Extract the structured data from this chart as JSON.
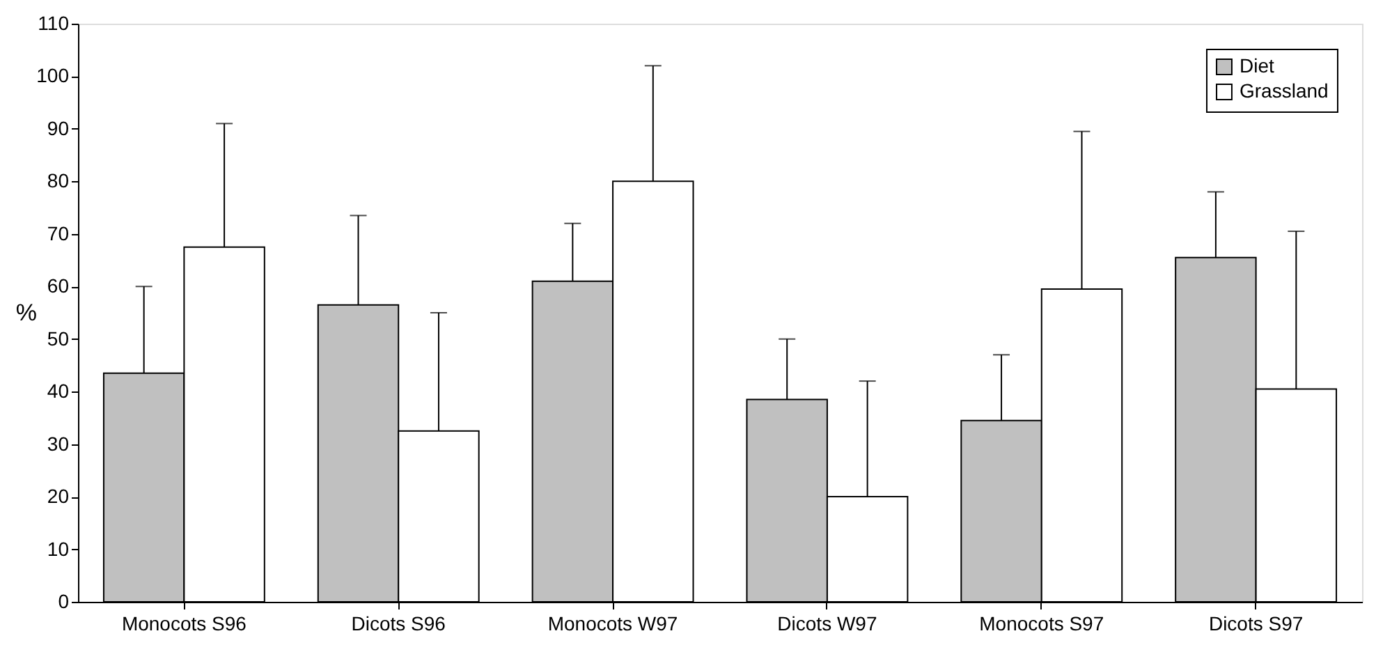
{
  "chart_data": {
    "type": "bar",
    "ylabel": "%",
    "categories": [
      "Monocots S96",
      "Dicots S96",
      "Monocots W97",
      "Dicots W97",
      "Monocots S97",
      "Dicots S97"
    ],
    "series": [
      {
        "name": "Diet",
        "color": "#c0c0c0",
        "values": [
          43.5,
          56.5,
          61,
          38.5,
          34.5,
          65.5
        ],
        "errors": [
          [
            43.5,
            60
          ],
          [
            56.5,
            73.5
          ],
          [
            61,
            72
          ],
          [
            38.5,
            50
          ],
          [
            34.5,
            47
          ],
          [
            65.5,
            78
          ]
        ]
      },
      {
        "name": "Grassland",
        "color": "#ffffff",
        "values": [
          67.5,
          32.5,
          80,
          20,
          59.5,
          40.5
        ],
        "errors": [
          [
            67.5,
            91
          ],
          [
            32.5,
            55
          ],
          [
            80,
            102
          ],
          [
            20,
            42
          ],
          [
            59.5,
            89.5
          ],
          [
            40.5,
            70.5
          ]
        ]
      }
    ],
    "ylim": [
      0,
      110
    ],
    "yticks": [
      0,
      10,
      20,
      30,
      40,
      50,
      60,
      70,
      80,
      90,
      100,
      110
    ],
    "grid": false,
    "legend": "top right"
  }
}
